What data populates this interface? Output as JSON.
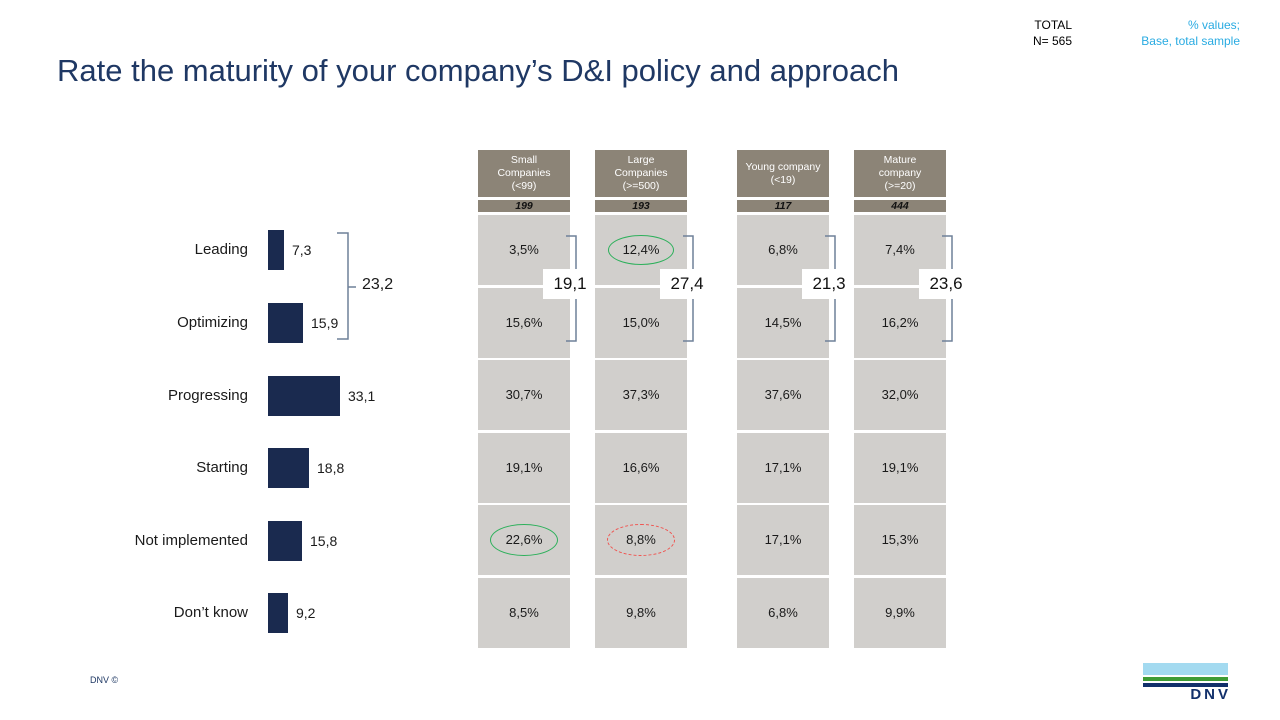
{
  "slide": {
    "title": "Rate the maturity of your company’s D&I policy and approach",
    "total_label": "TOTAL",
    "total_n": "N= 565",
    "note_line1": "% values;",
    "note_line2": "Base, total sample",
    "footer_copyright": "DNV ©",
    "logo_text": "DNV"
  },
  "colors": {
    "navy": "#1F3864",
    "cyan": "#29ABE2",
    "bar": "#1A2A4F",
    "taupe": "#8C8477",
    "cellgray": "#D1CFCC",
    "green": "#2DB05B",
    "red": "#F0534F",
    "bracket": "#6F8099",
    "sky": "#A3DAF0",
    "logogreen": "#3F9C35",
    "logoblue": "#12306B",
    "ink": "#1A1A1A"
  },
  "chart_data": {
    "type": "bar",
    "title": "Rate the maturity of your company’s D&I policy and approach",
    "orientation": "horizontal",
    "categories": [
      "Leading",
      "Optimizing",
      "Progressing",
      "Starting",
      "Not implemented",
      "Don’t know"
    ],
    "total_values": [
      7.3,
      15.9,
      33.1,
      18.8,
      15.8,
      9.2
    ],
    "total_value_labels": [
      "7,3",
      "15,9",
      "33,1",
      "18,8",
      "15,8",
      "9,2"
    ],
    "total_top2_sum": "23,2",
    "total_n": 565,
    "groups": [
      {
        "name": "Small Companies (<99)",
        "header_lines": [
          "Small",
          "Companies",
          "(<99)"
        ],
        "base": "199",
        "values": [
          "3,5%",
          "15,6%",
          "30,7%",
          "19,1%",
          "22,6%",
          "8,5%"
        ],
        "top2": "19,1",
        "highlights": [
          {
            "row": 4,
            "style": "green-solid"
          }
        ]
      },
      {
        "name": "Large Companies (>=500)",
        "header_lines": [
          "Large",
          "Companies",
          "(>=500)"
        ],
        "base": "193",
        "values": [
          "12,4%",
          "15,0%",
          "37,3%",
          "16,6%",
          "8,8%",
          "9,8%"
        ],
        "top2": "27,4",
        "highlights": [
          {
            "row": 0,
            "style": "green-solid"
          },
          {
            "row": 4,
            "style": "red-dashed"
          }
        ]
      },
      {
        "name": "Young company (<19)",
        "header_lines": [
          "Young company",
          "(<19)"
        ],
        "base": "117",
        "values": [
          "6,8%",
          "14,5%",
          "37,6%",
          "17,1%",
          "17,1%",
          "6,8%"
        ],
        "top2": "21,3",
        "highlights": []
      },
      {
        "name": "Mature company (>=20)",
        "header_lines": [
          "Mature",
          "company",
          "(>=20)"
        ],
        "base": "444",
        "values": [
          "7,4%",
          "16,2%",
          "32,0%",
          "19,1%",
          "15,3%",
          "9,9%"
        ],
        "top2": "23,6",
        "highlights": []
      }
    ]
  }
}
